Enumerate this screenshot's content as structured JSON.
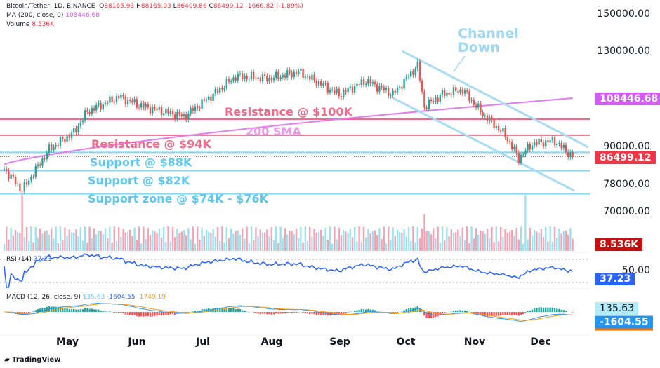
{
  "header": {
    "symbol": "Bitcoin/Tether, 1D, BINANCE",
    "o_label": "O",
    "open": "88165.93",
    "h_label": "H",
    "high": "88165.93",
    "l_label": "L",
    "low": "86409.86",
    "c_label": "C",
    "close": "86499.12",
    "change": "-1666.82 (-1.89%)",
    "ma_label": "MA (200, close, 0)",
    "ma_value": "108446.68",
    "vol_label": "Volume",
    "vol_value": "8.536K"
  },
  "rsi": {
    "label": "RSI (14)",
    "value": "37.23",
    "level": "50.00"
  },
  "macd": {
    "label": "MACD (12, 26, close, 9)",
    "hist": "135.63",
    "macd": "-1604.55",
    "signal": "-1740.19"
  },
  "price_axis": [
    "150000.00",
    "130000.00",
    "90000.00",
    "78000.00",
    "70000.00"
  ],
  "tags": {
    "ma": "108446.68",
    "price": "86499.12",
    "volume": "8.536K"
  },
  "months": [
    "May",
    "Jun",
    "Jul",
    "Aug",
    "Sep",
    "Oct",
    "Nov",
    "Dec"
  ],
  "annotations": {
    "channel": "Channel\nDown",
    "res100": "Resistance @ $100K",
    "sma": "200 SMA",
    "res94": "Resistance @ $94K",
    "sup88": "Support @ $88K",
    "sup82": "Support @ $82K",
    "zone": "Support zone @ $74K - $76K"
  },
  "brand": "TradingView",
  "colors": {
    "up": "#26a69a",
    "down": "#ef5350",
    "res": "#f06a8a",
    "sup": "#7fd9f5",
    "sma": "#e27cf0",
    "channel": "#a8dcf5",
    "rsi": "#2962ff"
  },
  "chart_data": {
    "type": "candlestick",
    "title": "Bitcoin/Tether 1D",
    "x_unit": "day index (Apr 1 = 0)",
    "y_scale": "log",
    "keypoints": [
      [
        0,
        82600
      ],
      [
        8,
        76000
      ],
      [
        20,
        89000
      ],
      [
        31,
        95000
      ],
      [
        37,
        103000
      ],
      [
        51,
        109000
      ],
      [
        62,
        105000
      ],
      [
        80,
        101000
      ],
      [
        93,
        110000
      ],
      [
        103,
        118000
      ],
      [
        118,
        117000
      ],
      [
        131,
        120000
      ],
      [
        142,
        114000
      ],
      [
        149,
        110000
      ],
      [
        161,
        116000
      ],
      [
        173,
        110000
      ],
      [
        184,
        123000
      ],
      [
        187,
        105000
      ],
      [
        195,
        110000
      ],
      [
        204,
        112000
      ],
      [
        213,
        102000
      ],
      [
        223,
        94000
      ],
      [
        229,
        86000
      ],
      [
        235,
        91000
      ],
      [
        245,
        92000
      ],
      [
        253,
        86500
      ]
    ],
    "levels": [
      100000,
      94000,
      88000,
      82000,
      75000
    ]
  }
}
